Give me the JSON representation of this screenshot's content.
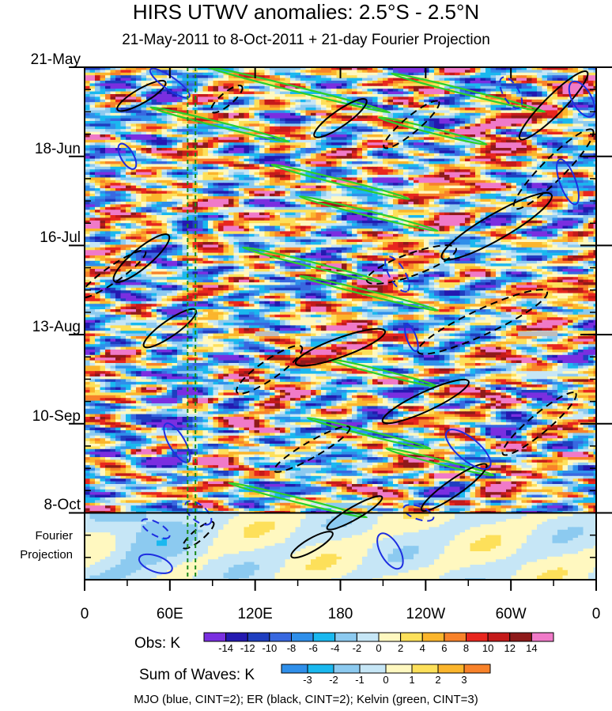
{
  "chart_data": {
    "type": "heatmap",
    "title": "HIRS UTWV anomalies: 2.5°S - 2.5°N",
    "subtitle": "21-May-2011 to 8-Oct-2011 + 21-day Fourier Projection",
    "x_axis": {
      "ticks": [
        {
          "lon": 0,
          "label": "0"
        },
        {
          "lon": 60,
          "label": "60E"
        },
        {
          "lon": 120,
          "label": "120E"
        },
        {
          "lon": 180,
          "label": "180"
        },
        {
          "lon": 240,
          "label": "120W"
        },
        {
          "lon": 300,
          "label": "60W"
        },
        {
          "lon": 360,
          "label": "0"
        }
      ],
      "range": [
        0,
        360
      ]
    },
    "y_axis": {
      "ticks": [
        {
          "day": 0,
          "label": "21-May"
        },
        {
          "day": 28,
          "label": "18-Jun"
        },
        {
          "day": 56,
          "label": "16-Jul"
        },
        {
          "day": 84,
          "label": "13-Aug"
        },
        {
          "day": 112,
          "label": "10-Sep"
        },
        {
          "day": 140,
          "label": "8-Oct"
        }
      ],
      "range_days": [
        0,
        161
      ],
      "projection_label": "Fourier Projection",
      "projection_start_day": 140
    },
    "reference_lines_lon": [
      72.5,
      78
    ],
    "obs_colorbar": {
      "label": "Obs: K",
      "levels": [
        -14,
        -12,
        -10,
        -8,
        -6,
        -4,
        -2,
        0,
        2,
        4,
        6,
        8,
        10,
        12,
        14
      ],
      "colors": [
        "#7a2fe0",
        "#2419b0",
        "#1f3ec0",
        "#3868e0",
        "#2f8fea",
        "#1ab8ef",
        "#8ccaf0",
        "#c6e6f6",
        "#fff8c0",
        "#fde05a",
        "#fbb52c",
        "#f8822a",
        "#e8261e",
        "#c41a1a",
        "#8e1a1a",
        "#f07ac8"
      ]
    },
    "waves_colorbar": {
      "label": "Sum of Waves: K",
      "levels": [
        -3,
        -2,
        -1,
        0,
        1,
        2,
        3
      ],
      "colors": [
        "#2f8fea",
        "#1ab8ef",
        "#8ccaf0",
        "#c6e6f6",
        "#fff8c0",
        "#fde05a",
        "#fbb52c",
        "#f8822a"
      ]
    },
    "contour_legend": "MJO (blue, CINT=2); ER (black, CINT=2); Kelvin (green, CINT=3)"
  }
}
